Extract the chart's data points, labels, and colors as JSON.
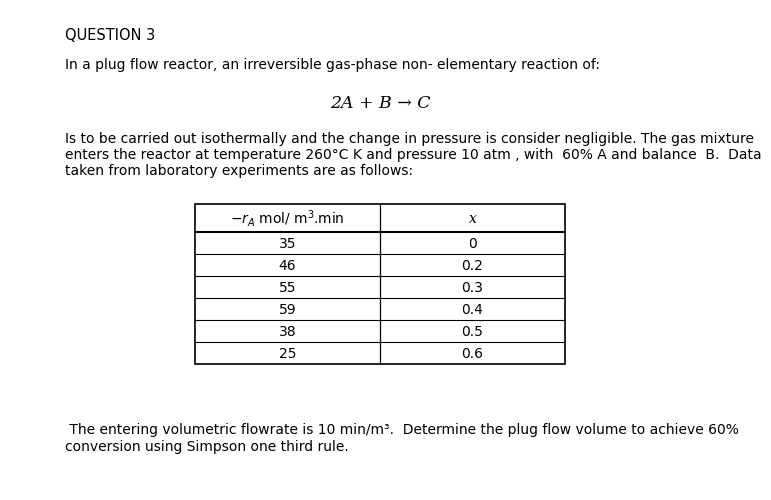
{
  "title": "QUESTION 3",
  "para1": "In a plug flow reactor, an irreversible gas-phase non- elementary reaction of:",
  "reaction": "2A + B → C",
  "para2_line1": "Is to be carried out isothermally and the change in pressure is consider negligible. The gas mixture",
  "para2_line2": "enters the reactor at temperature 260°C K and pressure 10 atm , with  60% A and balance  B.  Data",
  "para2_line3": "taken from laboratory experiments are as follows:",
  "table_header_left": "-rₐ mol/ m³.min",
  "table_header_right": "x",
  "table_data": [
    [
      "35",
      "0"
    ],
    [
      "46",
      "0.2"
    ],
    [
      "55",
      "0.3"
    ],
    [
      "59",
      "0.4"
    ],
    [
      "38",
      "0.5"
    ],
    [
      "25",
      "0.6"
    ]
  ],
  "footer_line1": " The entering volumetric flowrate is 10 min/m³.  Determine the plug flow volume to achieve 60%",
  "footer_line2": "conversion using Simpson one third rule.",
  "bg_color": "#ffffff",
  "text_color": "#000000",
  "font_size_title": 10.5,
  "font_size_body": 10.0,
  "font_size_reaction": 12.5,
  "font_size_table": 10.0
}
